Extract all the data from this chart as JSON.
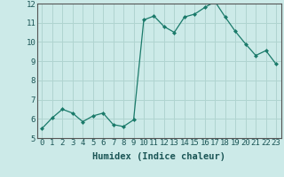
{
  "xlabel": "Humidex (Indice chaleur)",
  "x_values": [
    0,
    1,
    2,
    3,
    4,
    5,
    6,
    7,
    8,
    9,
    10,
    11,
    12,
    13,
    14,
    15,
    16,
    17,
    18,
    19,
    20,
    21,
    22,
    23
  ],
  "y_values": [
    5.5,
    6.05,
    6.5,
    6.3,
    5.85,
    6.15,
    6.3,
    5.7,
    5.6,
    5.95,
    11.15,
    11.35,
    10.8,
    10.5,
    11.3,
    11.45,
    11.8,
    12.1,
    11.3,
    10.55,
    9.9,
    9.3,
    9.55,
    8.85
  ],
  "ylim": [
    5,
    12
  ],
  "xlim": [
    -0.5,
    23.5
  ],
  "yticks": [
    5,
    6,
    7,
    8,
    9,
    10,
    11,
    12
  ],
  "xticks": [
    0,
    1,
    2,
    3,
    4,
    5,
    6,
    7,
    8,
    9,
    10,
    11,
    12,
    13,
    14,
    15,
    16,
    17,
    18,
    19,
    20,
    21,
    22,
    23
  ],
  "line_color": "#1a7a6a",
  "marker": "D",
  "marker_size": 2.0,
  "bg_color": "#cceae8",
  "grid_color": "#b0d4d0",
  "xlabel_fontsize": 7.5,
  "tick_fontsize": 6.5
}
